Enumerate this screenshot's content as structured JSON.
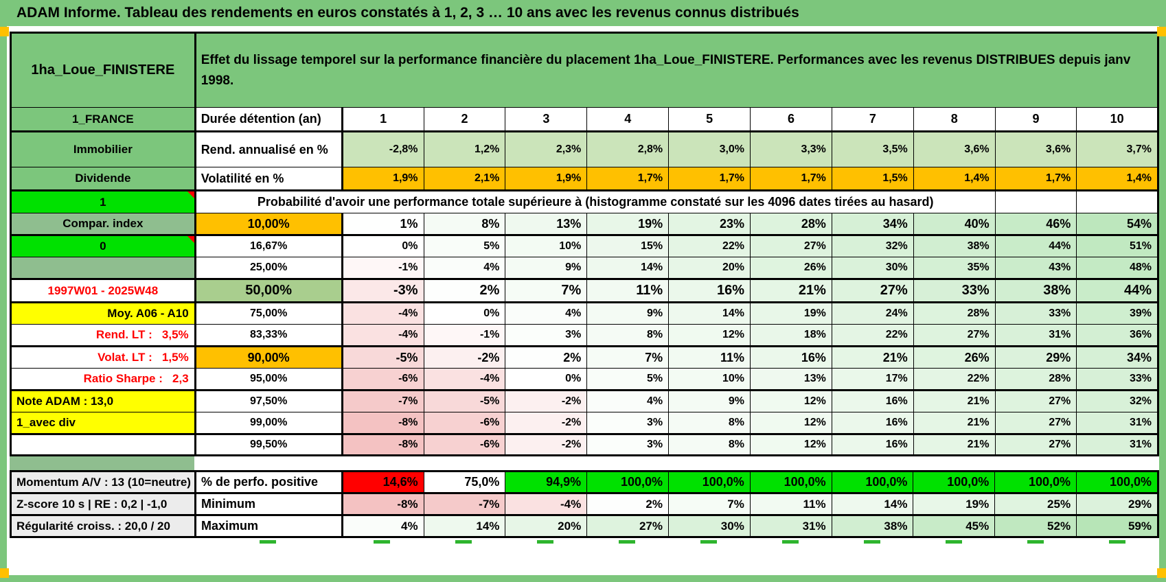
{
  "banner": {
    "title": "ADAM Informe. Tableau des rendements en euros constatés à 1, 2, 3 … 10 ans avec les revenus connus distribués"
  },
  "colors": {
    "green": "#7CC67C",
    "muted_green": "#8FBE8F",
    "bright_green": "#00E100",
    "fifty_green": "#A9CE8E",
    "orange": "#FFC000",
    "yellow": "#FFFF00",
    "red": "#FF0000",
    "gray": "#ECECEC",
    "light_green": "#CBE4BA",
    "white": "#FFFFFF",
    "neg_end": "#F4C2C2",
    "pos_end": "#B7E5B7",
    "text_red": "#FF0000",
    "tick_green": "#2EB52E"
  },
  "header": {
    "placement": "1ha_Loue_FINISTERE",
    "description": "Effet du lissage temporel sur la performance financière du placement 1ha_Loue_FINISTERE. Performances avec les revenus DISTRIBUES depuis janv 1998.",
    "index_label": "1_FRANCE",
    "duration_label": "Durée détention (an)",
    "durations": [
      "1",
      "2",
      "3",
      "4",
      "5",
      "6",
      "7",
      "8",
      "9",
      "10"
    ],
    "asset_label": "Immobilier",
    "rend_label": "Rend. annualisé en %",
    "rend_values": [
      "-2,8%",
      "1,2%",
      "2,3%",
      "2,8%",
      "3,0%",
      "3,3%",
      "3,5%",
      "3,6%",
      "3,6%",
      "3,7%"
    ],
    "dividend_label": "Dividende",
    "vol_label": "Volatilité en %",
    "vol_values": [
      "1,9%",
      "2,1%",
      "1,9%",
      "1,7%",
      "1,7%",
      "1,7%",
      "1,5%",
      "1,4%",
      "1,7%",
      "1,4%"
    ]
  },
  "probability": {
    "marker_one": "1",
    "header": "Probabilité d'avoir une performance totale supérieure à (histogramme constaté sur les 4096 dates tirées au hasard)",
    "rows": [
      {
        "left_text": "Compar. index",
        "left_bg": "muted_green",
        "left_align": "tc",
        "pct_text": "10,00%",
        "pct_bg": "orange",
        "emphasis": 1,
        "values": [
          1,
          8,
          13,
          19,
          23,
          28,
          34,
          40,
          46,
          54
        ],
        "thick_bottom": true
      },
      {
        "left_text": "0",
        "left_bg": "bright_green",
        "left_align": "tc",
        "left_marker": true,
        "pct_text": "16,67%",
        "values": [
          0,
          5,
          10,
          15,
          22,
          27,
          32,
          38,
          44,
          51
        ]
      },
      {
        "left_text": "",
        "left_bg": "muted_green",
        "left_align": "tc",
        "pct_text": "25,00%",
        "values": [
          -1,
          4,
          9,
          14,
          20,
          26,
          30,
          35,
          43,
          48
        ],
        "thick_bottom": true
      },
      {
        "left_text": "1997W01 - 2025W48",
        "left_bg": "white",
        "left_align": "tc",
        "left_color": "text_red",
        "pct_text": "50,00%",
        "pct_bg": "fifty_green",
        "emphasis": 2,
        "values": [
          -3,
          2,
          7,
          11,
          16,
          21,
          27,
          33,
          38,
          44
        ],
        "thick_bottom": true
      },
      {
        "left_text": "Moy. A06 - A10",
        "left_bg": "yellow",
        "left_align": "trr",
        "pct_text": "75,00%",
        "values": [
          -4,
          0,
          4,
          9,
          14,
          19,
          24,
          28,
          33,
          39
        ]
      },
      {
        "left_text": "Rend. LT :   3,5%",
        "left_bg": "white",
        "left_align": "trr",
        "left_color": "text_red",
        "pct_text": "83,33%",
        "values": [
          -4,
          -1,
          3,
          8,
          12,
          18,
          22,
          27,
          31,
          36
        ],
        "thick_bottom": true
      },
      {
        "left_text": "Volat. LT :   1,5%",
        "left_bg": "white",
        "left_align": "trr",
        "left_color": "text_red",
        "pct_text": "90,00%",
        "pct_bg": "orange",
        "emphasis": 1,
        "values": [
          -5,
          -2,
          2,
          7,
          11,
          16,
          21,
          26,
          29,
          34
        ]
      },
      {
        "left_text": "Ratio Sharpe :   2,3",
        "left_bg": "white",
        "left_align": "trr",
        "left_color": "text_red",
        "pct_text": "95,00%",
        "values": [
          -6,
          -4,
          0,
          5,
          10,
          13,
          17,
          22,
          28,
          33
        ],
        "thick_bottom": true
      },
      {
        "left_text": "Note ADAM : 13,0",
        "left_bg": "yellow",
        "left_align": "tll",
        "pct_text": "97,50%",
        "values": [
          -7,
          -5,
          -2,
          4,
          9,
          12,
          16,
          21,
          27,
          32
        ]
      },
      {
        "left_text": "1_avec div",
        "left_bg": "yellow",
        "left_align": "tll",
        "pct_text": "99,00%",
        "values": [
          -8,
          -6,
          -2,
          3,
          8,
          12,
          16,
          21,
          27,
          31
        ],
        "thick_bottom": true
      },
      {
        "left_text": "",
        "left_bg": "white",
        "left_align": "tc",
        "pct_text": "99,50%",
        "values": [
          -8,
          -6,
          -2,
          3,
          8,
          12,
          16,
          21,
          27,
          31
        ]
      }
    ]
  },
  "footer": {
    "rows": [
      {
        "left": "Momentum A/V : 13 (10=neutre)",
        "label": "% de perfo. positive",
        "cells": [
          {
            "t": "14,6%",
            "bg": "red"
          },
          {
            "t": "75,0%",
            "bg": "white"
          },
          {
            "t": "94,9%",
            "bg": "bright_green"
          },
          {
            "t": "100,0%",
            "bg": "bright_green"
          },
          {
            "t": "100,0%",
            "bg": "bright_green"
          },
          {
            "t": "100,0%",
            "bg": "bright_green"
          },
          {
            "t": "100,0%",
            "bg": "bright_green"
          },
          {
            "t": "100,0%",
            "bg": "bright_green"
          },
          {
            "t": "100,0%",
            "bg": "bright_green"
          },
          {
            "t": "100,0%",
            "bg": "bright_green"
          }
        ],
        "emphasis": 1
      },
      {
        "left": "Z-score 10 s | RE : 0,2 | -1,0",
        "label": "Minimum",
        "values": [
          -8,
          -7,
          -4,
          2,
          7,
          11,
          14,
          19,
          25,
          29
        ]
      },
      {
        "left": "Régularité croiss. : 20,0 / 20",
        "label": "Maximum",
        "values": [
          4,
          14,
          20,
          27,
          30,
          31,
          38,
          45,
          52,
          59
        ]
      }
    ]
  }
}
